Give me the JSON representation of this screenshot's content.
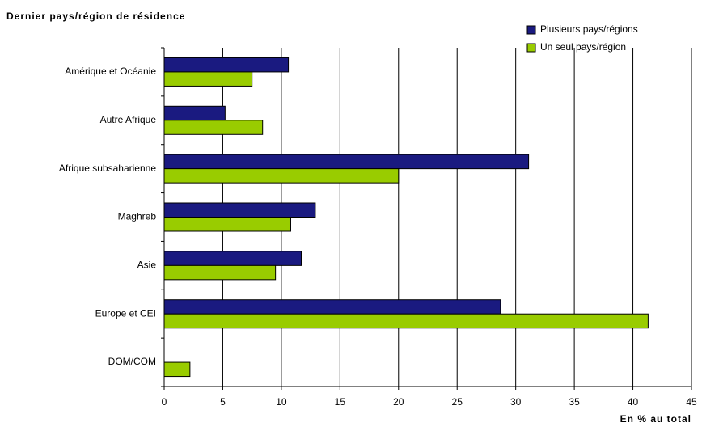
{
  "chart_data": {
    "type": "hbar",
    "title": "Dernier pays/région de résidence",
    "xlabel": "En % au total",
    "categories": [
      "Amérique et Océanie",
      "Autre Afrique",
      "Afrique subsaharienne",
      "Maghreb",
      "Asie",
      "Europe et CEI",
      "DOM/COM"
    ],
    "series": [
      {
        "name": "Plusieurs pays/régions",
        "color": "#1a1a80",
        "values": [
          10.6,
          5.2,
          31.1,
          12.9,
          11.7,
          28.7,
          null
        ]
      },
      {
        "name": "Un seul pays/région",
        "color": "#99cc00",
        "values": [
          7.5,
          8.4,
          20.0,
          10.8,
          9.5,
          41.3,
          2.2
        ]
      }
    ],
    "xlim": [
      0,
      45
    ],
    "xticks": [
      0,
      5,
      10,
      15,
      20,
      25,
      30,
      35,
      40,
      45
    ],
    "grid": true,
    "legend": "top-right"
  }
}
